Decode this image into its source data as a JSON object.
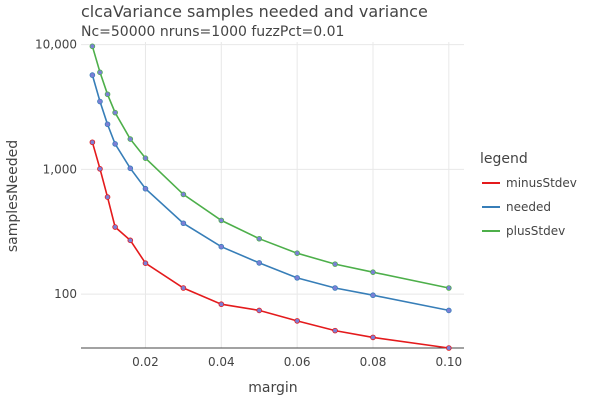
{
  "chart_data": {
    "type": "line",
    "title": "clcaVariance samples needed and variance",
    "subtitle": "Nc=50000 nruns=1000 fuzzPct=0.01",
    "xlabel": "margin",
    "ylabel": "samplesNeeded",
    "y_scale": "log",
    "xlim": [
      0.003,
      0.104
    ],
    "ylim": [
      37,
      10500
    ],
    "x_ticks": [
      0.02,
      0.04,
      0.06,
      0.08,
      0.1
    ],
    "x_tick_labels": [
      "0.02",
      "0.04",
      "0.06",
      "0.08",
      "0.10"
    ],
    "y_ticks": [
      100,
      1000,
      10000
    ],
    "y_tick_labels": [
      "100",
      "1,000",
      "10,000"
    ],
    "grid": true,
    "legend_title": "legend",
    "legend_position": "right",
    "x": [
      0.006,
      0.008,
      0.01,
      0.012,
      0.016,
      0.02,
      0.03,
      0.04,
      0.05,
      0.06,
      0.07,
      0.08,
      0.1
    ],
    "series": [
      {
        "name": "minusStdev",
        "color": "#e41a1c",
        "values": [
          1650,
          1010,
          600,
          345,
          270,
          177,
          112,
          83,
          74,
          61,
          51,
          45,
          37
        ]
      },
      {
        "name": "needed",
        "color": "#377eb8",
        "values": [
          5700,
          3500,
          2300,
          1600,
          1020,
          700,
          370,
          240,
          178,
          135,
          112,
          98,
          74
        ]
      },
      {
        "name": "plusStdev",
        "color": "#4daf4a",
        "values": [
          9700,
          6000,
          4000,
          2850,
          1750,
          1230,
          630,
          390,
          278,
          213,
          174,
          150,
          112
        ]
      }
    ],
    "marker_color": "#7b7fd6"
  }
}
